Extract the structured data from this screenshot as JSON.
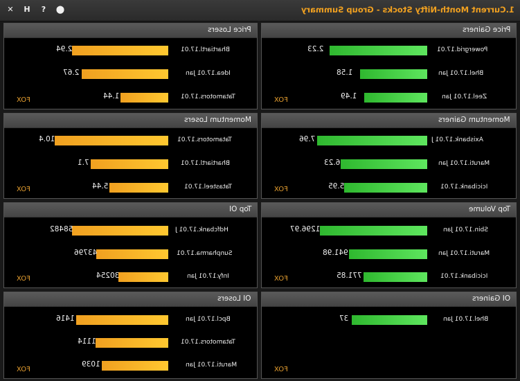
{
  "window": {
    "title": "1.Current Month-Nifty Stocks - Group Summary",
    "controls": [
      "✕",
      "H",
      "?",
      "⬤"
    ]
  },
  "footer_label": "FOX",
  "panels": {
    "price_losers": {
      "title": "Price Losers",
      "rows": [
        {
          "label": "Bhartiartl.17.01",
          "value": "2.94"
        },
        {
          "label": "Idea.17.01 Jan",
          "value": "2.67"
        },
        {
          "label": "Tatamotors.17.01",
          "value": "1.44"
        }
      ]
    },
    "price_gainers": {
      "title": "Price Gainers",
      "rows": [
        {
          "label": "Powergrid.17.01",
          "value": "2.23"
        },
        {
          "label": "Bhel.17.01 Jan",
          "value": "1.58"
        },
        {
          "label": "Zeel.17.01 Jan",
          "value": "1.49"
        }
      ]
    },
    "momentum_losers": {
      "title": "Momentum Losers",
      "rows": [
        {
          "label": "Tatamotors.17.01",
          "value": "10.4"
        },
        {
          "label": "Bhartiartl.17.01",
          "value": "7.1"
        },
        {
          "label": "Tatasteel.17.01",
          "value": "5.44"
        }
      ]
    },
    "momentum_gainers": {
      "title": "Momentum Gainers",
      "rows": [
        {
          "label": "Axisbank.17.01 J",
          "value": "7.96"
        },
        {
          "label": "Maruti.17.01 Jan",
          "value": "6.23"
        },
        {
          "label": "Icicibank.17.01",
          "value": "5.95"
        }
      ]
    },
    "top_oi": {
      "title": "Top OI",
      "rows": [
        {
          "label": "Hdfcbank.17.01 J",
          "value": "58482"
        },
        {
          "label": "Sunpharma.17.01",
          "value": "43796"
        },
        {
          "label": "Infy.17.01 Jan",
          "value": "30254"
        }
      ]
    },
    "top_volume": {
      "title": "Top Volume",
      "rows": [
        {
          "label": "Sbin.17.01 Jan",
          "value": "1296.97"
        },
        {
          "label": "Maruti.17.01 Jan",
          "value": "941.98"
        },
        {
          "label": "Icicibank.17.01",
          "value": "771.85"
        }
      ]
    },
    "oi_losers": {
      "title": "OI Losers",
      "rows": [
        {
          "label": "Bpcl.17.01 Jan",
          "value": "1416"
        },
        {
          "label": "Tatamotors.17.01",
          "value": "1114"
        },
        {
          "label": "Maruti.17.01 Jan",
          "value": "1039"
        }
      ]
    },
    "oi_gainers": {
      "title": "OI Gainers",
      "rows": [
        {
          "label": "Bhel.17.01 Jan",
          "value": "37"
        }
      ]
    }
  },
  "colors": {
    "gain_bar": "#3ccc3c",
    "loss_bar": "#f5b020",
    "title_accent": "#f0a020"
  }
}
